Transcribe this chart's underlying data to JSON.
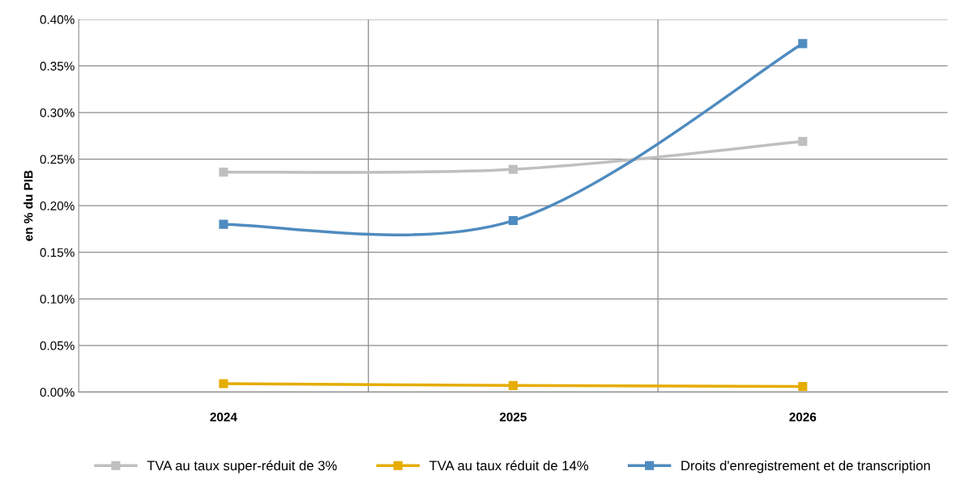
{
  "chart_data": {
    "type": "line",
    "ylabel": "en % du PIB",
    "categories": [
      "2024",
      "2025",
      "2026"
    ],
    "series": [
      {
        "name": "TVA au taux super-réduit de 3%",
        "color": "#bfbfbf",
        "values": [
          0.236,
          0.239,
          0.269
        ]
      },
      {
        "name": "TVA au taux réduit de 14%",
        "color": "#e6ac00",
        "values": [
          0.009,
          0.007,
          0.006
        ]
      },
      {
        "name": "Droits d'enregistrement et de transcription",
        "color": "#4f8bbf",
        "values": [
          0.18,
          0.184,
          0.374
        ]
      }
    ],
    "ylim": [
      0,
      0.4
    ],
    "yticks": [
      {
        "value": 0,
        "label": "0.00%"
      },
      {
        "value": 0.05,
        "label": "0.05%"
      },
      {
        "value": 0.1,
        "label": "0.10%"
      },
      {
        "value": 0.15,
        "label": "0.15%"
      },
      {
        "value": 0.2,
        "label": "0.20%"
      },
      {
        "value": 0.25,
        "label": "0.25%"
      },
      {
        "value": 0.3,
        "label": "0.30%"
      },
      {
        "value": 0.35,
        "label": "0.35%"
      },
      {
        "value": 0.4,
        "label": "0.40%"
      }
    ],
    "grid": true,
    "legend": "bottom",
    "marker": "square",
    "line_style": "solid"
  }
}
